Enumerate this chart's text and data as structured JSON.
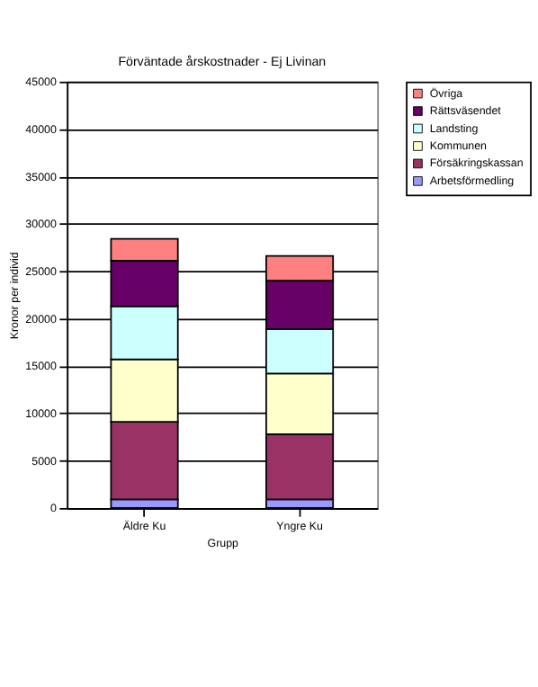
{
  "chart_data": {
    "type": "bar",
    "title": "Förväntade årskostnader - Ej Livinan",
    "xlabel": "Grupp",
    "ylabel": "Kronor per individ",
    "categories": [
      "Äldre Ku",
      "Yngre Ku"
    ],
    "stacked": true,
    "series": [
      {
        "name": "Arbetsförmedling",
        "color": "#9999ff",
        "values": [
          900,
          900
        ]
      },
      {
        "name": "Försäkringskassan",
        "color": "#993366",
        "values": [
          8200,
          6900
        ]
      },
      {
        "name": "Kommunen",
        "color": "#ffffcc",
        "values": [
          6600,
          6400
        ]
      },
      {
        "name": "Landsting",
        "color": "#ccffff",
        "values": [
          5600,
          4700
        ]
      },
      {
        "name": "Rättsväsendet",
        "color": "#660066",
        "values": [
          4800,
          5100
        ]
      },
      {
        "name": "Övriga",
        "color": "#ff8080",
        "values": [
          2300,
          2600
        ]
      }
    ],
    "ylim": [
      0,
      45000
    ],
    "yticks": [
      0,
      5000,
      10000,
      15000,
      20000,
      25000,
      30000,
      35000,
      40000,
      45000
    ],
    "grid": "y",
    "legend": "right"
  }
}
